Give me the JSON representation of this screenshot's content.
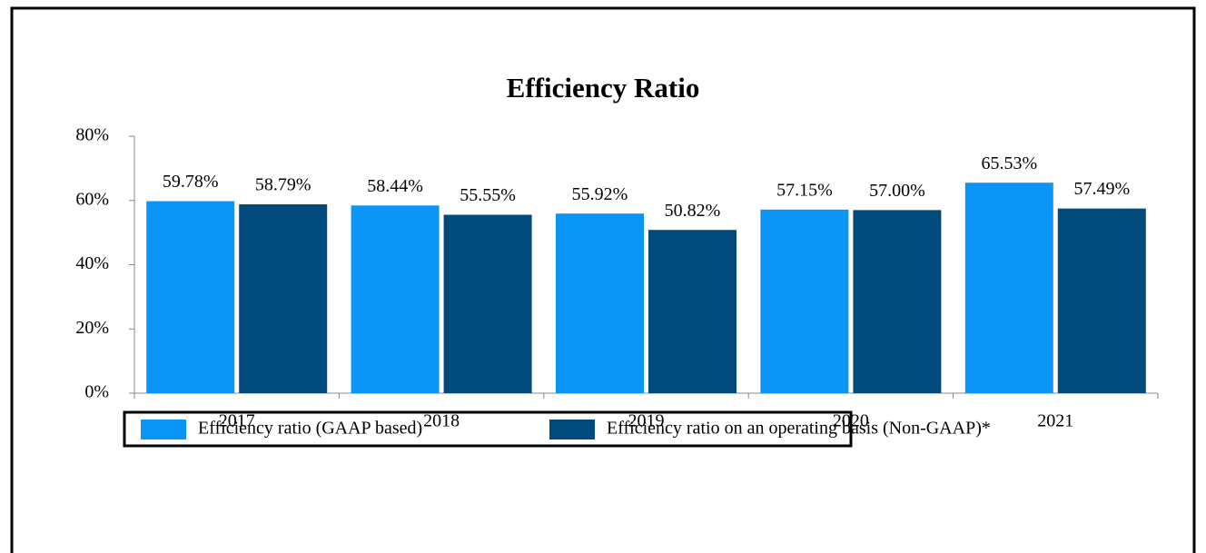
{
  "chart_data": {
    "type": "bar",
    "title": "Efficiency Ratio",
    "categories": [
      "2017",
      "2018",
      "2019",
      "2020",
      "2021"
    ],
    "series": [
      {
        "name": "Efficiency ratio (GAAP based)",
        "color": "#0b96f7",
        "values": [
          59.78,
          58.44,
          55.92,
          57.15,
          65.53
        ],
        "value_labels": [
          "59.78%",
          "58.44%",
          "55.92%",
          "57.15%",
          "65.53%"
        ]
      },
      {
        "name": "Efficiency ratio on an operating basis (Non-GAAP)*",
        "color": "#004a7c",
        "values": [
          58.79,
          55.55,
          50.82,
          57.0,
          57.49
        ],
        "value_labels": [
          "58.79%",
          "55.55%",
          "50.82%",
          "57.00%",
          "57.49%"
        ]
      }
    ],
    "ylim": [
      0,
      80
    ],
    "yticks": [
      {
        "value": 0,
        "label": "0%"
      },
      {
        "value": 20,
        "label": "20%"
      },
      {
        "value": 40,
        "label": "40%"
      },
      {
        "value": 60,
        "label": "60%"
      },
      {
        "value": 80,
        "label": "80%"
      }
    ],
    "grid": false,
    "legend": "bottom"
  }
}
